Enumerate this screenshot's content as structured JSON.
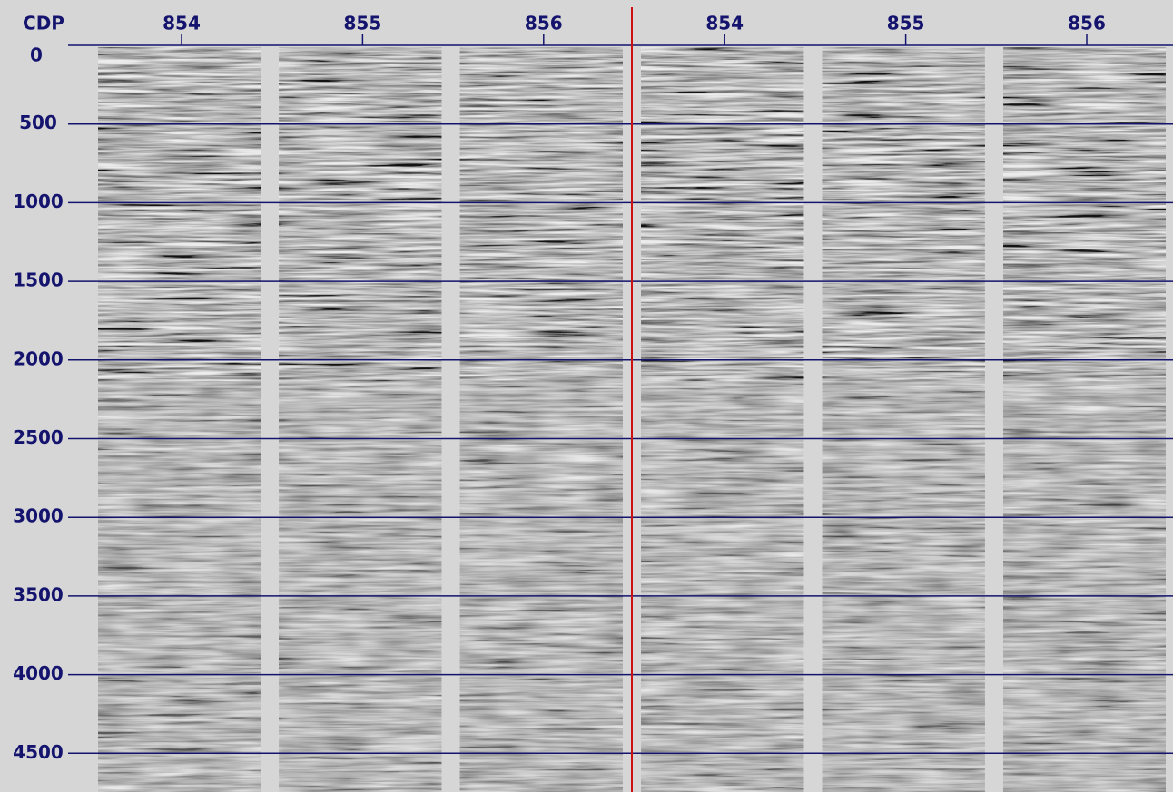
{
  "header_label": "CDP",
  "panels": [
    {
      "label": "854"
    },
    {
      "label": "855"
    },
    {
      "label": "856"
    },
    {
      "label": "854"
    },
    {
      "label": "855"
    },
    {
      "label": "856"
    }
  ],
  "time_ticks": [
    "0",
    "500",
    "1000",
    "1500",
    "2000",
    "2500",
    "3000",
    "3500",
    "4000",
    "4500"
  ]
}
